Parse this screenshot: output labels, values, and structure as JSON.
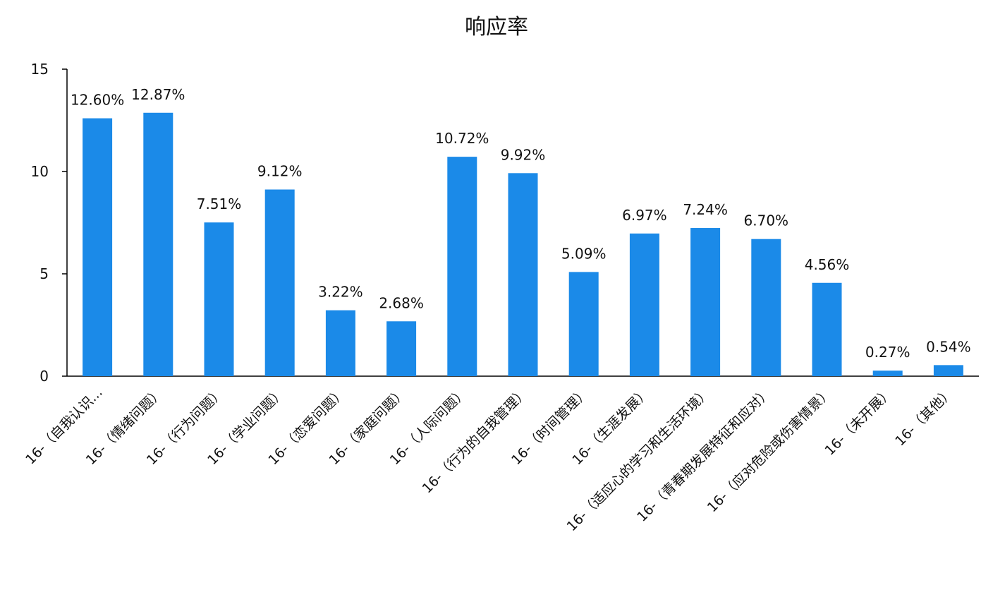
{
  "chart_data": {
    "type": "bar",
    "title": "响应率",
    "xlabel": "",
    "ylabel": "",
    "ylim": [
      0,
      15
    ],
    "yticks": [
      0,
      5,
      10,
      15
    ],
    "grid": false,
    "legend": "none",
    "bar_color": "#1b8ae8",
    "categories": [
      "16-（自我认识...",
      "16-（情绪问题）",
      "16-（行为问题）",
      "16-（学业问题）",
      "16-（恋爱问题）",
      "16-（家庭问题）",
      "16-（人际问题）",
      "16-（行为的自我管理）",
      "16-（时间管理）",
      "16-（生涯发展）",
      "16-（适应心的学习和生活环境）",
      "16-（青春期发展特征和应对）",
      "16-（应对危险或伤害情景）",
      "16-（未开展）",
      "16-（其他）"
    ],
    "values": [
      12.6,
      12.87,
      7.51,
      9.12,
      3.22,
      2.68,
      10.72,
      9.92,
      5.09,
      6.97,
      7.24,
      6.7,
      4.56,
      0.27,
      0.54
    ],
    "data_labels": [
      "12.60%",
      "12.87%",
      "7.51%",
      "9.12%",
      "3.22%",
      "2.68%",
      "10.72%",
      "9.92%",
      "5.09%",
      "6.97%",
      "7.24%",
      "6.70%",
      "4.56%",
      "0.27%",
      "0.54%"
    ]
  }
}
